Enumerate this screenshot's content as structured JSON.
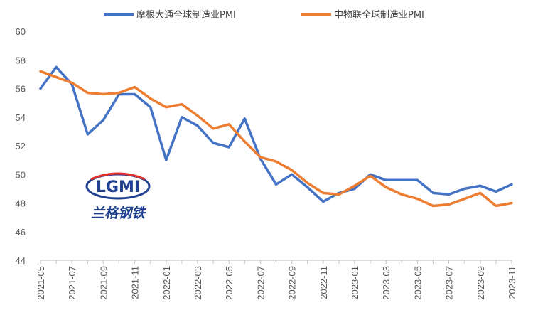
{
  "chart_data": {
    "type": "line",
    "title": "",
    "xlabel": "",
    "ylabel": "",
    "ylim": [
      44,
      60
    ],
    "yticks": [
      44,
      46,
      48,
      50,
      52,
      54,
      56,
      58,
      60
    ],
    "grid": false,
    "legend_position": "top",
    "x": [
      "2021-05",
      "2021-06",
      "2021-07",
      "2021-08",
      "2021-09",
      "2021-10",
      "2021-11",
      "2021-12",
      "2022-01",
      "2022-02",
      "2022-03",
      "2022-04",
      "2022-05",
      "2022-06",
      "2022-07",
      "2022-08",
      "2022-09",
      "2022-10",
      "2022-11",
      "2022-12",
      "2023-01",
      "2023-02",
      "2023-03",
      "2023-04",
      "2023-05",
      "2023-06",
      "2023-07",
      "2023-08",
      "2023-09",
      "2023-10",
      "2023-11"
    ],
    "xtick_labels": [
      "2021-05",
      "2021-07",
      "2021-09",
      "2021-11",
      "2022-01",
      "2022-03",
      "2022-05",
      "2022-07",
      "2022-09",
      "2022-11",
      "2023-01",
      "2023-03",
      "2023-05",
      "2023-07",
      "2023-09",
      "2023-11"
    ],
    "series": [
      {
        "name": "摩根大通全球制造业PMI",
        "color": "#4472C4",
        "values": [
          56.0,
          57.5,
          56.3,
          52.8,
          53.8,
          55.6,
          55.6,
          54.7,
          51.0,
          54.0,
          53.4,
          52.2,
          51.9,
          53.9,
          51.1,
          49.3,
          50.0,
          49.1,
          48.1,
          48.7,
          49.0,
          50.0,
          49.6,
          49.6,
          49.6,
          48.7,
          48.6,
          49.0,
          49.2,
          48.8,
          49.3
        ]
      },
      {
        "name": "中物联全球制造业PMI",
        "color": "#ED7D31",
        "values": [
          57.2,
          56.8,
          56.4,
          55.7,
          55.6,
          55.7,
          56.1,
          55.3,
          54.7,
          54.9,
          54.1,
          53.2,
          53.5,
          52.3,
          51.2,
          50.9,
          50.3,
          49.4,
          48.7,
          48.6,
          49.2,
          49.9,
          49.1,
          48.6,
          48.3,
          47.8,
          47.9,
          48.3,
          48.7,
          47.8,
          48.0
        ]
      }
    ]
  },
  "logo": {
    "letters": "LGMI",
    "chinese": "兰格钢铁",
    "colors": {
      "primary": "#1F3F8F",
      "accent": "#E0302A"
    }
  }
}
